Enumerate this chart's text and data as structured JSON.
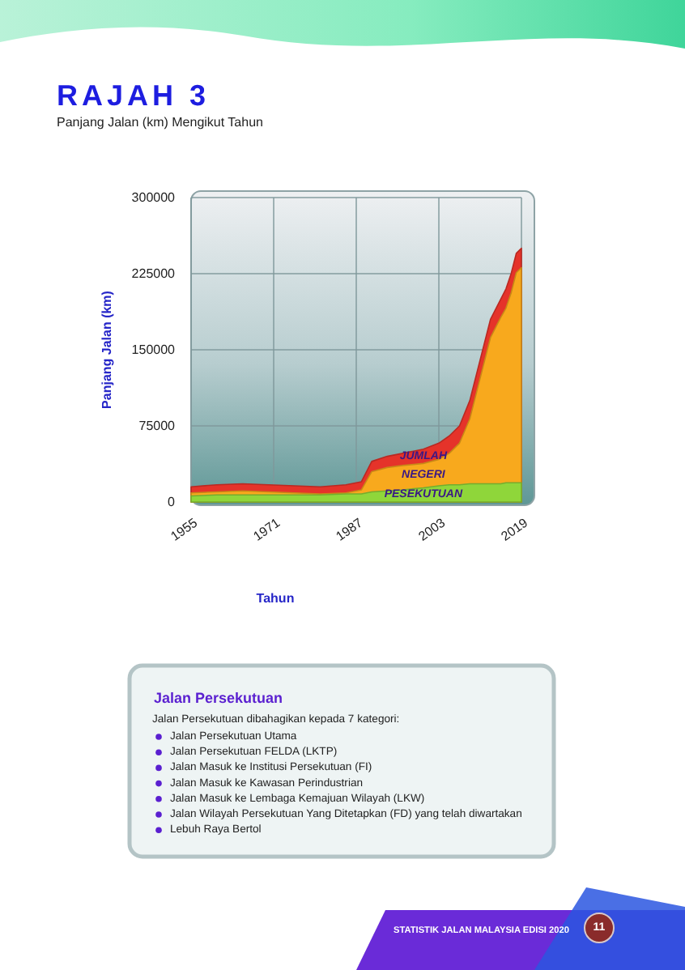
{
  "chart_data": {
    "type": "area",
    "title": "RAJAH 3",
    "subtitle": "Panjang Jalan (km) Mengikut Tahun",
    "xlabel": "Tahun",
    "ylabel": "Panjang Jalan (km)",
    "x": [
      1955,
      1960,
      1965,
      1970,
      1975,
      1980,
      1985,
      1988,
      1990,
      1993,
      1996,
      2000,
      2003,
      2005,
      2007,
      2009,
      2011,
      2013,
      2015,
      2016,
      2017,
      2018,
      2019
    ],
    "series": [
      {
        "name": "JUMLAH",
        "color": "#e5332a",
        "values": [
          15000,
          17000,
          18000,
          17000,
          16000,
          15000,
          17000,
          20000,
          40000,
          45000,
          48000,
          52000,
          58000,
          65000,
          75000,
          100000,
          140000,
          180000,
          200000,
          210000,
          225000,
          245000,
          250000
        ]
      },
      {
        "name": "NEGERI",
        "color": "#f8a91d",
        "values": [
          9000,
          10000,
          11000,
          10000,
          9000,
          8000,
          9000,
          12000,
          30000,
          34000,
          36000,
          38000,
          42000,
          48000,
          58000,
          82000,
          122000,
          162000,
          182000,
          191000,
          206000,
          226000,
          231000
        ]
      },
      {
        "name": "PESEKUTUAN",
        "color": "#8fd63a",
        "values": [
          6000,
          7000,
          7000,
          7000,
          7000,
          7000,
          8000,
          8000,
          10000,
          11000,
          12000,
          14000,
          16000,
          17000,
          17000,
          18000,
          18000,
          18000,
          18000,
          19000,
          19000,
          19000,
          19000
        ]
      }
    ],
    "xlim": [
      1955,
      2019
    ],
    "xticks": [
      1955,
      1971,
      1987,
      2003,
      2019
    ],
    "ylim": [
      0,
      300000
    ],
    "yticks": [
      0,
      75000,
      150000,
      225000,
      300000
    ],
    "grid": true,
    "annotations": [
      "Jalan Persekutuan",
      "Jalan Persekutuan dibahagikan kepada 7 kategori:",
      "Jalan Persekutuan Utama",
      "Jalan Persekutuan FELDA (LKTP)",
      "Jalan Masuk ke Institusi Persekutuan (FI)",
      "Jalan Masuk ke Kawasan Perindustrian",
      "Jalan Masuk ke Lembaga Kemajuan Wilayah (LKW)",
      "Jalan Wilayah Persekutuan Yang Ditetapkan (FD) yang telah diwartakan",
      "Lebuh Raya Bertol",
      "STATISTIK JALAN MALAYSIA EDISI 2020",
      "11"
    ]
  }
}
